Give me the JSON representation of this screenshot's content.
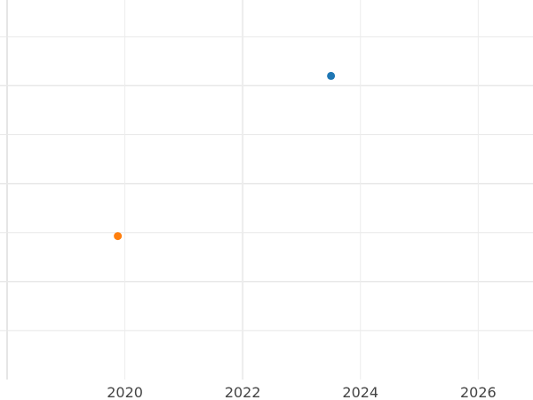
{
  "chart_data": {
    "type": "scatter",
    "title": "",
    "xlabel": "",
    "ylabel": "",
    "xlim": [
      2018.0,
      2026.93
    ],
    "ylim": [
      0,
      7.75
    ],
    "grid": true,
    "x_ticks": [
      2020,
      2022,
      2024,
      2026
    ],
    "x_tick_labels": [
      "2020",
      "2022",
      "2024",
      "2026"
    ],
    "y_gridlines": [
      1,
      2,
      3,
      4,
      5,
      6,
      7
    ],
    "points": [
      {
        "x": 2023.5,
        "y": 6.2,
        "color": "#1f77b4"
      },
      {
        "x": 2019.88,
        "y": 2.93,
        "color": "#ff7f0e"
      }
    ]
  }
}
